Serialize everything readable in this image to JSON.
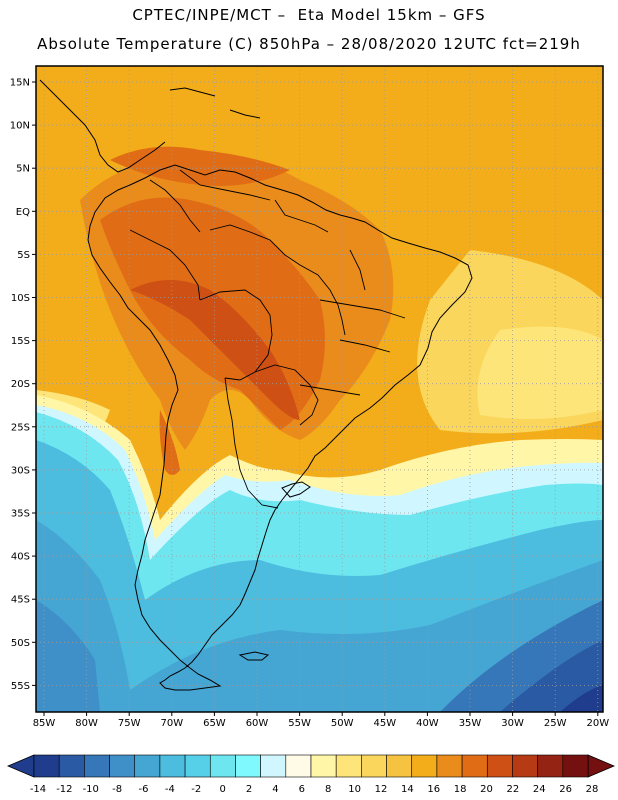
{
  "header": {
    "line1": "CPTEC/INPE/MCT –  Eta Model 15km – GFS",
    "line2": "Absolute Temperature (C) 850hPa – 28/08/2020 12UTC fct=219h"
  },
  "map": {
    "lat_labels": [
      "15N",
      "10N",
      "5N",
      "EQ",
      "5S",
      "10S",
      "15S",
      "20S",
      "25S",
      "30S",
      "35S",
      "40S",
      "45S",
      "50S",
      "55S"
    ],
    "lon_labels": [
      "85W",
      "80W",
      "75W",
      "70W",
      "65W",
      "60W",
      "55W",
      "50W",
      "45W",
      "40W",
      "35W",
      "30W",
      "25W",
      "20W"
    ]
  },
  "colorbar": {
    "labels": [
      "-14",
      "-12",
      "-10",
      "-8",
      "-6",
      "-4",
      "-2",
      "0",
      "2",
      "4",
      "6",
      "8",
      "10",
      "12",
      "14",
      "16",
      "18",
      "20",
      "22",
      "24",
      "26",
      "28"
    ],
    "colors": [
      "#1f3d8c",
      "#2a5aa3",
      "#3577b8",
      "#3f8fc8",
      "#45a6d4",
      "#4cbcdf",
      "#55d0e8",
      "#6ee6f0",
      "#7ff9fd",
      "#d0f7ff",
      "#fffbe6",
      "#fff6a8",
      "#fde57a",
      "#fbd65c",
      "#f6c340",
      "#f3ad1a",
      "#ea8c1c",
      "#e06d16",
      "#cf5014",
      "#b63b14",
      "#952314",
      "#741010"
    ]
  },
  "colors": {
    "warm_land": "#e07a1f",
    "hot_core": "#c9561a",
    "ocean_warm": "#f3ad1a",
    "cold": "#4cbcdf"
  }
}
